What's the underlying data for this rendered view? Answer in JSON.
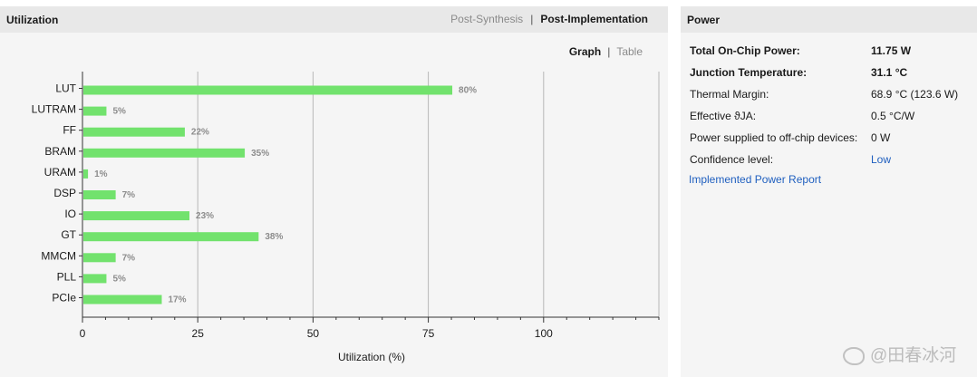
{
  "utilization": {
    "title": "Utilization",
    "tabs": [
      {
        "label": "Post-Synthesis",
        "active": false
      },
      {
        "label": "Post-Implementation",
        "active": true
      }
    ],
    "view_options": [
      {
        "label": "Graph",
        "active": true
      },
      {
        "label": "Table",
        "active": false
      }
    ]
  },
  "chart_data": {
    "type": "bar",
    "orientation": "horizontal",
    "categories": [
      "LUT",
      "LUTRAM",
      "FF",
      "BRAM",
      "URAM",
      "DSP",
      "IO",
      "GT",
      "MMCM",
      "PLL",
      "PCIe"
    ],
    "values": [
      80,
      5,
      22,
      35,
      1,
      7,
      23,
      38,
      7,
      5,
      17
    ],
    "value_labels": [
      "80%",
      "5%",
      "22%",
      "35%",
      "1%",
      "7%",
      "23%",
      "38%",
      "7%",
      "5%",
      "17%"
    ],
    "xlabel": "Utilization (%)",
    "xlim": [
      0,
      125
    ],
    "xticks": [
      0,
      25,
      50,
      75,
      100
    ],
    "grid": true,
    "bar_color": "#72e26d"
  },
  "power": {
    "title": "Power",
    "rows": [
      {
        "label": "Total On-Chip Power:",
        "value": "11.75 W",
        "bold": true,
        "link": false
      },
      {
        "label": "Junction Temperature:",
        "value": "31.1 °C",
        "bold": true,
        "link": false
      },
      {
        "label": "Thermal Margin:",
        "value": "68.9 °C (123.6 W)",
        "bold": false,
        "link": false
      },
      {
        "label": "Effective ϑJA:",
        "value": "0.5 °C/W",
        "bold": false,
        "link": false
      },
      {
        "label": "Power supplied to off-chip devices:",
        "value": "0 W",
        "bold": false,
        "link": false
      },
      {
        "label": "Confidence level:",
        "value": "Low",
        "bold": false,
        "link": true
      }
    ],
    "report_link": "Implemented Power Report"
  },
  "watermark": {
    "text": "@田春冰河"
  },
  "colors": {
    "link": "#1f5fbf",
    "header_bg": "#e8e8e8",
    "panel_bg": "#f5f5f5",
    "bar": "#72e26d"
  }
}
